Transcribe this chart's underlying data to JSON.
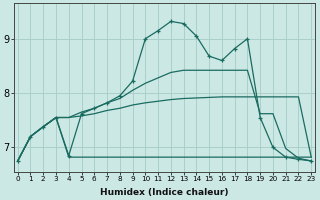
{
  "xlabel": "Humidex (Indice chaleur)",
  "background_color": "#cce8e5",
  "grid_color": "#aacfcb",
  "line_color": "#1a6b60",
  "x_ticks": [
    0,
    1,
    2,
    3,
    4,
    5,
    6,
    7,
    8,
    9,
    10,
    11,
    12,
    13,
    14,
    15,
    16,
    17,
    18,
    19,
    20,
    21,
    22,
    23
  ],
  "y_ticks": [
    7,
    8,
    9
  ],
  "ylim": [
    6.55,
    9.65
  ],
  "xlim": [
    -0.3,
    23.3
  ],
  "line_top_x": [
    0,
    1,
    2,
    3,
    4,
    5,
    6,
    7,
    8,
    9,
    10,
    11,
    12,
    13,
    14,
    15,
    16,
    17,
    18,
    19,
    20,
    21,
    22,
    23
  ],
  "line_top_y": [
    6.75,
    7.2,
    7.38,
    7.55,
    6.85,
    7.62,
    7.72,
    7.82,
    7.95,
    8.22,
    9.0,
    9.15,
    9.32,
    9.28,
    9.05,
    8.68,
    8.6,
    8.82,
    9.0,
    7.55,
    7.0,
    6.82,
    6.78,
    6.75
  ],
  "line_mid_x": [
    0,
    1,
    2,
    3,
    4,
    5,
    6,
    7,
    8,
    9,
    10,
    11,
    12,
    13,
    14,
    15,
    16,
    17,
    18,
    19,
    20,
    21,
    22,
    23
  ],
  "line_mid_y": [
    6.75,
    7.2,
    7.38,
    7.55,
    7.55,
    7.65,
    7.72,
    7.82,
    7.9,
    8.05,
    8.18,
    8.28,
    8.38,
    8.42,
    8.42,
    8.42,
    8.42,
    8.42,
    8.42,
    7.62,
    7.62,
    6.98,
    6.8,
    6.75
  ],
  "line_low_x": [
    0,
    1,
    2,
    3,
    4,
    5,
    6,
    7,
    8,
    9,
    10,
    11,
    12,
    13,
    14,
    15,
    16,
    17,
    18,
    19,
    20,
    21,
    22,
    23
  ],
  "line_low_y": [
    6.75,
    7.2,
    7.38,
    7.55,
    7.55,
    7.58,
    7.62,
    7.68,
    7.72,
    7.78,
    7.82,
    7.85,
    7.88,
    7.9,
    7.91,
    7.92,
    7.93,
    7.93,
    7.93,
    7.93,
    7.93,
    7.93,
    7.93,
    6.82
  ],
  "line_flat_x": [
    0,
    1,
    2,
    3,
    4,
    5,
    6,
    7,
    8,
    9,
    10,
    11,
    12,
    13,
    14,
    15,
    16,
    17,
    18,
    19,
    20,
    21,
    22,
    23
  ],
  "line_flat_y": [
    6.75,
    7.2,
    7.38,
    7.55,
    6.82,
    6.82,
    6.82,
    6.82,
    6.82,
    6.82,
    6.82,
    6.82,
    6.82,
    6.82,
    6.82,
    6.82,
    6.82,
    6.82,
    6.82,
    6.82,
    6.82,
    6.82,
    6.82,
    6.82
  ]
}
